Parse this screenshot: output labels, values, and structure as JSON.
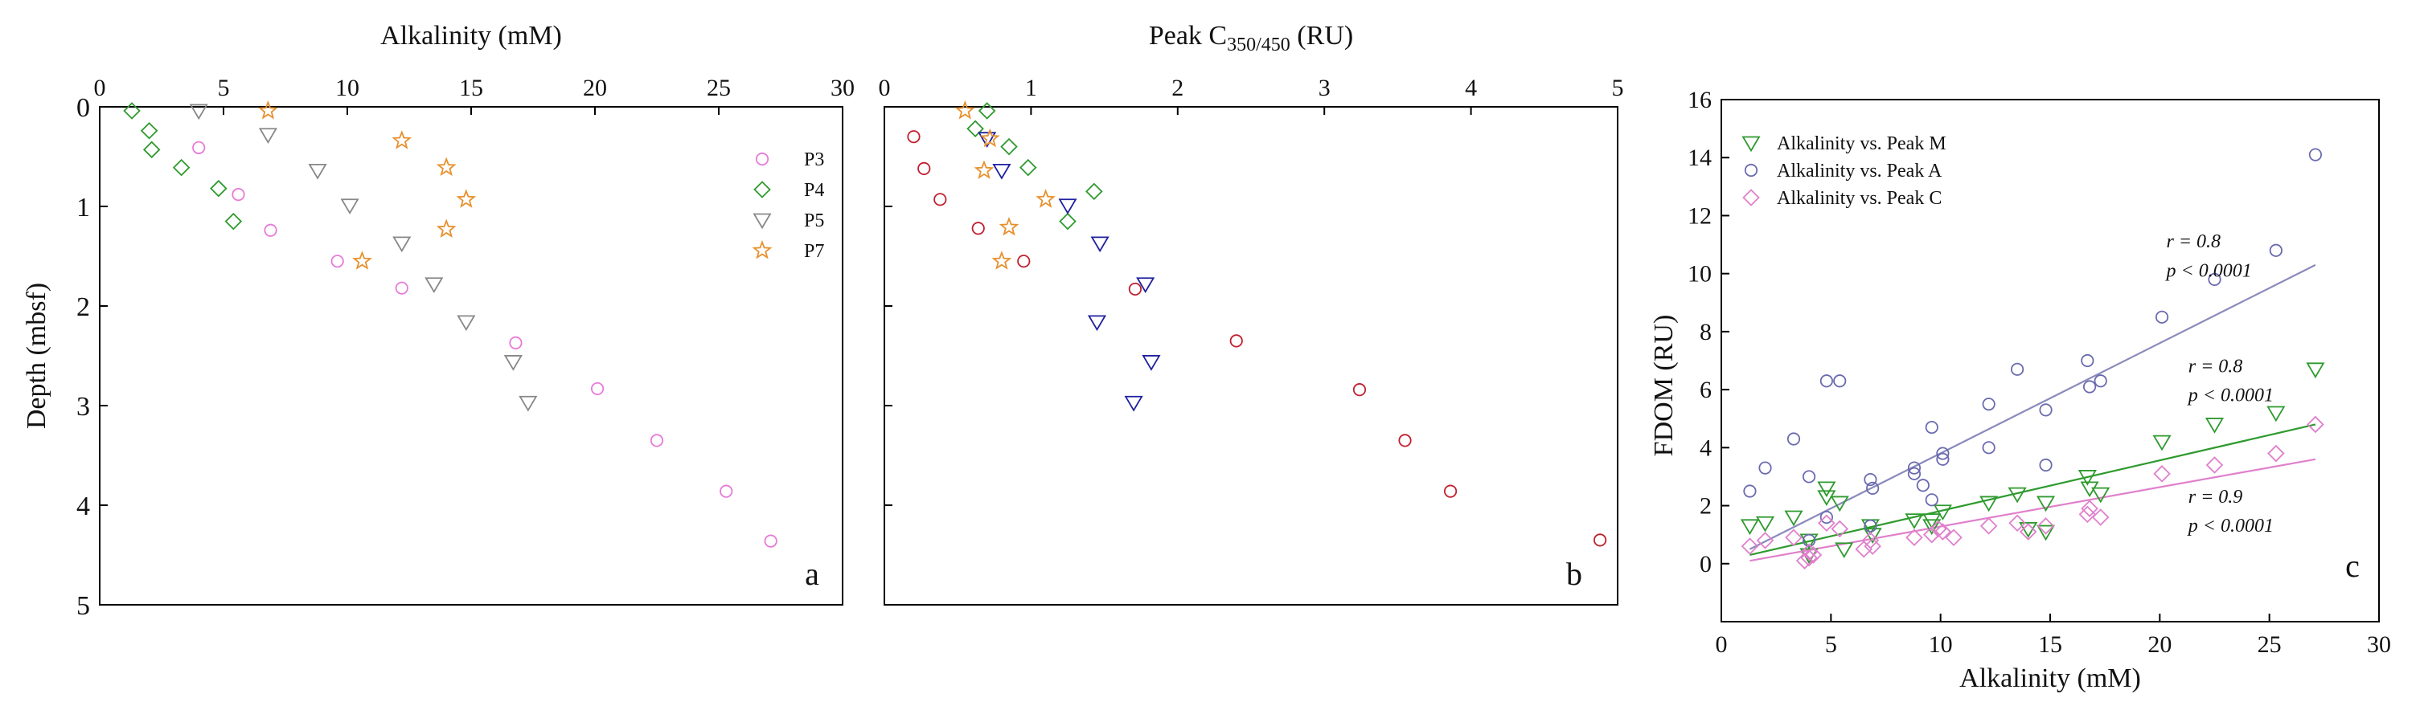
{
  "chart_data": [
    {
      "id": "a",
      "type": "scatter",
      "panel_label": "a",
      "xlabel": "Alkalinity (mM)",
      "ylabel": "Depth (mbsf)",
      "xlim": [
        0,
        30
      ],
      "ylim": [
        0,
        5
      ],
      "x_axis_position": "top",
      "y_inverted": true,
      "x_ticks": [
        "0",
        "5",
        "10",
        "15",
        "20",
        "25",
        "30"
      ],
      "y_ticks": [
        "0",
        "1",
        "2",
        "3",
        "4",
        "5"
      ],
      "legend_position": "top-right",
      "series": [
        {
          "name": "P3",
          "marker": "circle",
          "color": "#e87ad8",
          "x": [
            4.0,
            5.6,
            6.9,
            9.6,
            12.2,
            16.8,
            20.1,
            22.5,
            25.3,
            27.1
          ],
          "y": [
            0.41,
            0.88,
            1.24,
            1.55,
            1.82,
            2.37,
            2.83,
            3.35,
            3.86,
            4.36
          ]
        },
        {
          "name": "P4",
          "marker": "diamond",
          "color": "#2e9a2e",
          "x": [
            1.3,
            2.0,
            2.1,
            3.3,
            4.8,
            5.4
          ],
          "y": [
            0.04,
            0.24,
            0.43,
            0.61,
            0.82,
            1.15
          ]
        },
        {
          "name": "P5",
          "marker": "triangle-down",
          "color": "#888888",
          "x": [
            4.0,
            6.8,
            8.8,
            10.1,
            12.2,
            13.5,
            14.8,
            16.7,
            17.3
          ],
          "y": [
            0.04,
            0.28,
            0.64,
            0.99,
            1.37,
            1.78,
            2.16,
            2.56,
            2.97
          ]
        },
        {
          "name": "P7",
          "marker": "star",
          "color": "#e8902e",
          "x": [
            6.8,
            12.2,
            14.0,
            14.8,
            14.0,
            10.6
          ],
          "y": [
            0.04,
            0.34,
            0.61,
            0.93,
            1.23,
            1.55
          ]
        }
      ]
    },
    {
      "id": "b",
      "type": "scatter",
      "panel_label": "b",
      "xlabel": "Peak C350/450 (RU)",
      "xlabel_main": "Peak C",
      "xlabel_sub": "350/450",
      "xlabel_unit": " (RU)",
      "xlim": [
        0,
        5
      ],
      "ylim": [
        0,
        5
      ],
      "x_axis_position": "top",
      "y_inverted": true,
      "x_ticks": [
        "0",
        "1",
        "2",
        "3",
        "4",
        "5"
      ],
      "series": [
        {
          "name": "P3",
          "marker": "circle",
          "color": "#c0202e",
          "x": [
            0.2,
            0.27,
            0.38,
            0.64,
            0.95,
            1.71,
            2.4,
            3.24,
            3.55,
            3.86,
            4.88
          ],
          "y": [
            0.3,
            0.62,
            0.93,
            1.22,
            1.55,
            1.83,
            2.35,
            2.84,
            3.35,
            3.86,
            4.35
          ]
        },
        {
          "name": "P4",
          "marker": "diamond",
          "color": "#2e9a2e",
          "x": [
            0.7,
            0.62,
            0.85,
            0.98,
            1.43,
            1.25
          ],
          "y": [
            0.04,
            0.22,
            0.4,
            0.61,
            0.85,
            1.15
          ]
        },
        {
          "name": "P5",
          "marker": "triangle-down",
          "color": "#2020a0",
          "x": [
            0.7,
            0.8,
            1.25,
            1.47,
            1.78,
            1.45,
            1.82,
            1.7
          ],
          "y": [
            0.32,
            0.64,
            0.99,
            1.37,
            1.78,
            2.16,
            2.56,
            2.97
          ]
        },
        {
          "name": "P7",
          "marker": "star",
          "color": "#e8902e",
          "x": [
            0.55,
            0.72,
            0.68,
            1.1,
            0.85,
            0.8
          ],
          "y": [
            0.04,
            0.32,
            0.64,
            0.93,
            1.21,
            1.55
          ]
        }
      ]
    },
    {
      "id": "c",
      "type": "scatter",
      "panel_label": "c",
      "xlabel": "Alkalinity (mM)",
      "ylabel": "FDOM (RU)",
      "xlim": [
        0,
        30
      ],
      "ylim": [
        -2,
        16
      ],
      "x_ticks": [
        "0",
        "5",
        "10",
        "15",
        "20",
        "25",
        "30"
      ],
      "y_ticks": [
        "0",
        "2",
        "4",
        "6",
        "8",
        "10",
        "12",
        "14",
        "16"
      ],
      "legend_position": "top-left",
      "series": [
        {
          "name": "Alkalinity vs. Peak M",
          "marker": "triangle-down",
          "color": "#2e9a2e",
          "x": [
            1.3,
            2.0,
            3.3,
            4.0,
            4.8,
            4.8,
            5.4,
            6.8,
            6.9,
            8.8,
            9.6,
            10.1,
            12.2,
            13.5,
            14.0,
            14.8,
            16.7,
            16.8,
            17.3,
            20.1,
            22.5,
            25.3,
            27.1,
            4.0,
            5.6,
            9.6,
            14.8
          ],
          "y": [
            1.3,
            1.4,
            1.6,
            0.8,
            2.6,
            2.3,
            2.1,
            1.3,
            1.0,
            1.5,
            1.5,
            1.8,
            2.1,
            2.4,
            1.2,
            2.1,
            3.0,
            2.6,
            2.4,
            4.2,
            4.8,
            5.2,
            6.7,
            0.3,
            0.5,
            1.3,
            1.1
          ]
        },
        {
          "name": "Alkalinity vs. Peak A",
          "marker": "circle",
          "color": "#6a6ab0",
          "x": [
            1.3,
            2.0,
            3.3,
            4.0,
            4.8,
            5.4,
            6.8,
            6.9,
            8.8,
            9.6,
            10.1,
            12.2,
            13.5,
            14.8,
            16.7,
            16.8,
            17.3,
            20.1,
            22.5,
            25.3,
            27.1,
            4.0,
            4.8,
            6.8,
            9.6,
            10.1,
            12.2,
            14.8,
            8.8,
            9.2
          ],
          "y": [
            2.5,
            3.3,
            4.3,
            3.0,
            6.3,
            6.3,
            2.9,
            2.6,
            3.3,
            4.7,
            3.8,
            5.5,
            6.7,
            5.3,
            7.0,
            6.1,
            6.3,
            8.5,
            9.8,
            10.8,
            14.1,
            0.8,
            1.6,
            1.3,
            2.2,
            3.6,
            4.0,
            3.4,
            3.1,
            2.7
          ]
        },
        {
          "name": "Alkalinity vs. Peak C",
          "marker": "diamond",
          "color": "#e080cc",
          "x": [
            1.3,
            2.0,
            3.3,
            4.0,
            4.0,
            4.8,
            5.4,
            6.8,
            6.9,
            8.8,
            9.6,
            10.1,
            10.6,
            12.2,
            13.5,
            14.0,
            14.8,
            16.7,
            16.8,
            17.3,
            20.1,
            22.5,
            25.3,
            27.1,
            3.8,
            4.2,
            6.5,
            9.9
          ],
          "y": [
            0.6,
            0.8,
            0.9,
            0.2,
            0.4,
            1.4,
            1.2,
            0.8,
            0.6,
            0.9,
            1.0,
            1.1,
            0.9,
            1.3,
            1.4,
            1.1,
            1.3,
            1.7,
            1.9,
            1.6,
            3.1,
            3.4,
            3.8,
            4.8,
            0.1,
            0.3,
            0.5,
            1.2
          ]
        }
      ],
      "trendlines": [
        {
          "series": "Alkalinity vs. Peak A",
          "color": "#8a8abb",
          "x": [
            1.3,
            27.1
          ],
          "y": [
            0.5,
            10.3
          ]
        },
        {
          "series": "Alkalinity vs. Peak M",
          "color": "#2e9a2e",
          "x": [
            1.3,
            27.1
          ],
          "y": [
            0.3,
            4.8
          ]
        },
        {
          "series": "Alkalinity vs. Peak C",
          "color": "#e080cc",
          "x": [
            1.3,
            27.1
          ],
          "y": [
            0.1,
            3.6
          ]
        }
      ],
      "annotations": [
        {
          "r": "r = 0.8",
          "p": "p < 0.0001",
          "color": "#222",
          "x": 20.3,
          "y": 10.3,
          "r_x": 20.3,
          "r_y": 10.9,
          "p_y": 9.9
        },
        {
          "r": "r = 0.8",
          "p": "p < 0.0001",
          "color": "#222",
          "x": 21.3,
          "y": 6.5,
          "r_x": 21.3,
          "r_y": 6.6,
          "p_y": 5.6
        },
        {
          "r": "r = 0.9",
          "p": "p < 0.0001",
          "color": "#222",
          "x": 21.3,
          "y": 2.3,
          "r_x": 21.3,
          "r_y": 2.1,
          "p_y": 1.1
        }
      ]
    }
  ]
}
